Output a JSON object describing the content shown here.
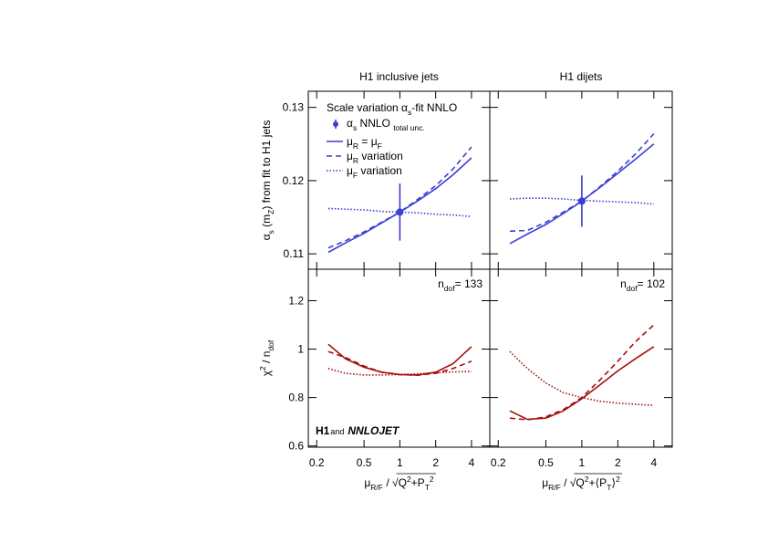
{
  "chart_data": [
    {
      "type": "line",
      "title": "H1 inclusive jets",
      "log_x": true,
      "ylabel": [
        "α",
        {
          "sub": "s"
        },
        " (m",
        {
          "sub": "Z"
        },
        ") from fit to H1 jets"
      ],
      "legend_title": [
        "Scale variation α",
        {
          "sub": "s"
        },
        "-fit NNLO"
      ],
      "fit_point_label": [
        "α",
        {
          "sub": "s"
        },
        " NNLO ",
        {
          "sub": "total unc."
        }
      ],
      "fit_point": {
        "x": 1,
        "y": 0.1157,
        "error": 0.0039
      },
      "x": [
        0.25,
        0.35,
        0.5,
        0.7,
        1,
        1.4,
        2,
        2.8,
        4
      ],
      "series": [
        {
          "name": [
            "μ",
            {
              "sub": "R"
            },
            " = μ",
            {
              "sub": "F"
            }
          ],
          "color": "#3a3fd0",
          "dash": "solid",
          "values": [
            0.1102,
            0.1115,
            0.1128,
            0.1142,
            0.1157,
            0.1172,
            0.1189,
            0.1208,
            0.1231
          ]
        },
        {
          "name": [
            "μ",
            {
              "sub": "R"
            },
            " variation"
          ],
          "color": "#3a3fd0",
          "dash": "dashed",
          "values": [
            0.1108,
            0.1118,
            0.113,
            0.1143,
            0.1157,
            0.1174,
            0.1193,
            0.1216,
            0.1246
          ]
        },
        {
          "name": [
            "μ",
            {
              "sub": "F"
            },
            " variation"
          ],
          "color": "#3a3fd0",
          "dash": "dotted",
          "values": [
            0.1162,
            0.1161,
            0.116,
            0.1158,
            0.1157,
            0.1156,
            0.1154,
            0.1153,
            0.1151
          ]
        }
      ],
      "xlim": [
        0.17,
        5.7
      ],
      "ylim": [
        0.1079,
        0.1322
      ],
      "xticks": [
        0.2,
        0.5,
        1,
        2,
        4
      ],
      "yticks": [
        0.11,
        0.12,
        0.13
      ],
      "xtick_labels": false,
      "ytick_labels": true
    },
    {
      "type": "line",
      "title": "H1 dijets",
      "log_x": true,
      "fit_point": {
        "x": 1,
        "y": 0.1172,
        "error": 0.0035
      },
      "x": [
        0.25,
        0.35,
        0.5,
        0.7,
        1,
        1.4,
        2,
        2.8,
        4
      ],
      "series": [
        {
          "color": "#3a3fd0",
          "dash": "solid",
          "values": [
            0.1114,
            0.1127,
            0.114,
            0.1155,
            0.1172,
            0.119,
            0.121,
            0.1229,
            0.125
          ]
        },
        {
          "color": "#3a3fd0",
          "dash": "dashed",
          "values": [
            0.1131,
            0.1132,
            0.1143,
            0.1157,
            0.1172,
            0.1191,
            0.1213,
            0.1236,
            0.1264
          ]
        },
        {
          "color": "#3a3fd0",
          "dash": "dotted",
          "values": [
            0.1175,
            0.1176,
            0.1176,
            0.1175,
            0.1173,
            0.1172,
            0.1171,
            0.117,
            0.1168
          ]
        }
      ],
      "xlim": [
        0.17,
        5.7
      ],
      "ylim": [
        0.1079,
        0.1322
      ],
      "xticks": [
        0.2,
        0.5,
        1,
        2,
        4
      ],
      "yticks": [
        0.11,
        0.12,
        0.13
      ],
      "xtick_labels": false,
      "ytick_labels": false
    },
    {
      "type": "line",
      "log_x": true,
      "ylabel": [
        "χ",
        {
          "sup": "2"
        },
        " / n",
        {
          "sub": "dof"
        }
      ],
      "xlabel": [
        "μ",
        {
          "sub": "R/F"
        },
        " / √",
        "Q",
        {
          "sup": "2"
        },
        "+P",
        {
          "sub": "T"
        },
        {
          "sup": "2"
        }
      ],
      "annotation": [
        "n",
        {
          "sub": "dof"
        },
        "= 133"
      ],
      "credit": [
        "H1",
        "and",
        "NNLOJET"
      ],
      "x": [
        0.25,
        0.35,
        0.5,
        0.7,
        1,
        1.4,
        2,
        2.8,
        4
      ],
      "series": [
        {
          "color": "#a50d0d",
          "dash": "solid",
          "values": [
            1.02,
            0.96,
            0.925,
            0.905,
            0.895,
            0.893,
            0.905,
            0.94,
            1.01
          ]
        },
        {
          "color": "#a50d0d",
          "dash": "dashed",
          "values": [
            0.99,
            0.965,
            0.93,
            0.905,
            0.895,
            0.892,
            0.9,
            0.92,
            0.95
          ]
        },
        {
          "color": "#a50d0d",
          "dash": "dotted",
          "values": [
            0.92,
            0.9,
            0.893,
            0.893,
            0.895,
            0.898,
            0.902,
            0.906,
            0.908
          ]
        }
      ],
      "xlim": [
        0.17,
        5.7
      ],
      "ylim": [
        0.595,
        1.33
      ],
      "xticks": [
        0.2,
        0.5,
        1,
        2,
        4
      ],
      "yticks": [
        0.6,
        0.8,
        1,
        1.2
      ],
      "xtick_labels": true,
      "ytick_labels": true
    },
    {
      "type": "line",
      "log_x": true,
      "xlabel": [
        "μ",
        {
          "sub": "R/F"
        },
        " / √",
        "Q",
        {
          "sup": "2"
        },
        "+⟨P",
        {
          "sub": "T"
        },
        "⟩",
        {
          "sup": "2"
        }
      ],
      "annotation": [
        "n",
        {
          "sub": "dof"
        },
        "= 102"
      ],
      "x": [
        0.25,
        0.35,
        0.5,
        0.7,
        1,
        1.4,
        2,
        2.8,
        4
      ],
      "series": [
        {
          "color": "#a50d0d",
          "dash": "solid",
          "values": [
            0.745,
            0.71,
            0.715,
            0.745,
            0.795,
            0.85,
            0.91,
            0.96,
            1.01
          ]
        },
        {
          "color": "#a50d0d",
          "dash": "dashed",
          "values": [
            0.715,
            0.708,
            0.72,
            0.75,
            0.8,
            0.87,
            0.95,
            1.03,
            1.1
          ]
        },
        {
          "color": "#a50d0d",
          "dash": "dotted",
          "values": [
            0.99,
            0.92,
            0.86,
            0.82,
            0.8,
            0.785,
            0.777,
            0.772,
            0.768
          ]
        }
      ],
      "xlim": [
        0.17,
        5.7
      ],
      "ylim": [
        0.595,
        1.33
      ],
      "xticks": [
        0.2,
        0.5,
        1,
        2,
        4
      ],
      "yticks": [
        0.6,
        0.8,
        1,
        1.2
      ],
      "xtick_labels": true,
      "ytick_labels": false
    }
  ]
}
